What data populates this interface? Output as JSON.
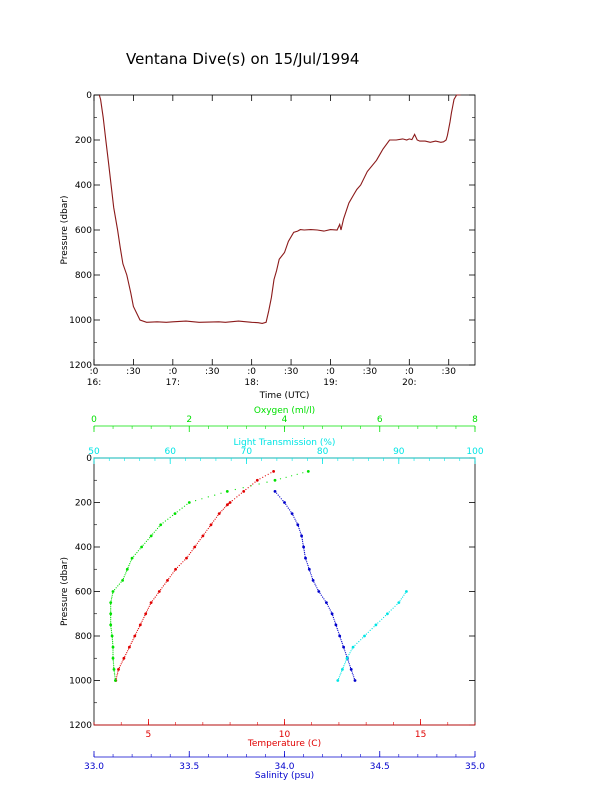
{
  "page": {
    "title": "Ventana Dive(s) on 15/Jul/1994"
  },
  "chart_data": [
    {
      "type": "line",
      "title": "Ventana Dive(s) on 15/Jul/1994",
      "xlabel": "Time (UTC)",
      "ylabel": "Pressure (dbar)",
      "x_unit": "minutes since 16:00 UTC",
      "xlim": [
        0,
        290
      ],
      "ylim": [
        1200,
        0
      ],
      "x_ticks": [
        {
          "v": 0,
          "top": ":0",
          "bottom": "16:"
        },
        {
          "v": 30,
          "top": ":30",
          "bottom": ""
        },
        {
          "v": 60,
          "top": ":0",
          "bottom": "17:"
        },
        {
          "v": 90,
          "top": ":30",
          "bottom": ""
        },
        {
          "v": 120,
          "top": ":0",
          "bottom": "18:"
        },
        {
          "v": 150,
          "top": ":30",
          "bottom": ""
        },
        {
          "v": 180,
          "top": ":0",
          "bottom": "19:"
        },
        {
          "v": 210,
          "top": ":30",
          "bottom": ""
        },
        {
          "v": 240,
          "top": ":0",
          "bottom": "20:"
        },
        {
          "v": 270,
          "top": ":30",
          "bottom": ""
        }
      ],
      "y_ticks": [
        0,
        200,
        400,
        600,
        800,
        1000,
        1200
      ],
      "series": [
        {
          "color": "#8b1a1a",
          "x": [
            4,
            5,
            7,
            9,
            11,
            13,
            15,
            18,
            20,
            22,
            25,
            28,
            30,
            35,
            40,
            48,
            55,
            60,
            70,
            80,
            95,
            100,
            110,
            120,
            125,
            128,
            131,
            133,
            135,
            137,
            139,
            141,
            145,
            148,
            152,
            155,
            157,
            160,
            165,
            170,
            175,
            180,
            185,
            187,
            188,
            190,
            194,
            198,
            200,
            203,
            208,
            215,
            220,
            225,
            230,
            235,
            238,
            240,
            242,
            244,
            246,
            248,
            252,
            256,
            260,
            264,
            266,
            268,
            269,
            270,
            271,
            272,
            273,
            274,
            276,
            278,
            279
          ],
          "y": [
            0,
            20,
            100,
            200,
            300,
            400,
            500,
            600,
            680,
            750,
            800,
            880,
            940,
            1000,
            1010,
            1008,
            1010,
            1008,
            1005,
            1010,
            1008,
            1010,
            1005,
            1010,
            1012,
            1015,
            1010,
            960,
            900,
            820,
            780,
            730,
            700,
            650,
            610,
            605,
            598,
            600,
            598,
            600,
            605,
            598,
            600,
            575,
            600,
            550,
            480,
            440,
            420,
            400,
            340,
            290,
            240,
            200,
            200,
            195,
            200,
            195,
            198,
            175,
            200,
            205,
            205,
            210,
            205,
            210,
            208,
            200,
            180,
            150,
            120,
            80,
            50,
            20,
            0,
            0,
            0
          ]
        }
      ]
    },
    {
      "type": "scatter",
      "ylabel": "Pressure (dbar)",
      "ylim": [
        1200,
        0
      ],
      "y_ticks": [
        0,
        200,
        400,
        600,
        800,
        1000,
        1200
      ],
      "axes": [
        {
          "key": "oxygen",
          "label": "Oxygen (ml/l)",
          "position": "top",
          "color": "#00e000",
          "lim": [
            0,
            8
          ],
          "ticks": [
            0,
            2,
            4,
            6,
            8
          ]
        },
        {
          "key": "transmission",
          "label": "Light Transmission (%)",
          "position": "top",
          "color": "#00e5e5",
          "lim": [
            50,
            100
          ],
          "ticks": [
            50,
            60,
            70,
            80,
            90,
            100
          ]
        },
        {
          "key": "temperature",
          "label": "Temperature (C)",
          "position": "bottom",
          "color": "#e00000",
          "lim": [
            3,
            17
          ],
          "ticks": [
            5,
            10,
            15
          ]
        },
        {
          "key": "salinity",
          "label": "Salinity (psu)",
          "position": "bottom",
          "color": "#0000cc",
          "lim": [
            33.0,
            35.0
          ],
          "ticks": [
            33.0,
            33.5,
            34.0,
            34.5,
            35.0
          ]
        }
      ],
      "series": [
        {
          "axis": "temperature",
          "color": "#e00000",
          "pressure": [
            60,
            100,
            150,
            200,
            210,
            250,
            300,
            350,
            400,
            450,
            500,
            550,
            600,
            650,
            700,
            750,
            800,
            850,
            900,
            950,
            1000
          ],
          "values": [
            9.6,
            9.0,
            8.5,
            8.0,
            7.9,
            7.6,
            7.3,
            7.0,
            6.7,
            6.4,
            6.0,
            5.7,
            5.4,
            5.1,
            4.9,
            4.7,
            4.5,
            4.3,
            4.1,
            3.9,
            3.8
          ]
        },
        {
          "axis": "salinity",
          "color": "#0000cc",
          "pressure": [
            150,
            200,
            250,
            300,
            350,
            400,
            450,
            500,
            550,
            600,
            650,
            700,
            750,
            800,
            850,
            900,
            950,
            1000
          ],
          "values": [
            33.95,
            34.0,
            34.04,
            34.07,
            34.09,
            34.1,
            34.11,
            34.13,
            34.15,
            34.18,
            34.22,
            34.25,
            34.27,
            34.29,
            34.31,
            34.33,
            34.35,
            34.37
          ]
        },
        {
          "axis": "oxygen",
          "color": "#00e000",
          "pressure": [
            60,
            100,
            150,
            200,
            250,
            300,
            350,
            400,
            450,
            500,
            550,
            600,
            650,
            700,
            750,
            800,
            850,
            900,
            950,
            1000
          ],
          "values": [
            4.5,
            3.8,
            2.8,
            2.0,
            1.7,
            1.4,
            1.2,
            1.0,
            0.8,
            0.7,
            0.6,
            0.4,
            0.35,
            0.35,
            0.35,
            0.38,
            0.4,
            0.4,
            0.42,
            0.45
          ]
        },
        {
          "axis": "transmission",
          "color": "#00e5e5",
          "pressure": [
            600,
            650,
            700,
            750,
            800,
            850,
            900,
            950,
            1000
          ],
          "values": [
            91,
            90,
            88.5,
            87,
            85.5,
            84,
            83.2,
            82.6,
            82
          ]
        }
      ]
    }
  ]
}
